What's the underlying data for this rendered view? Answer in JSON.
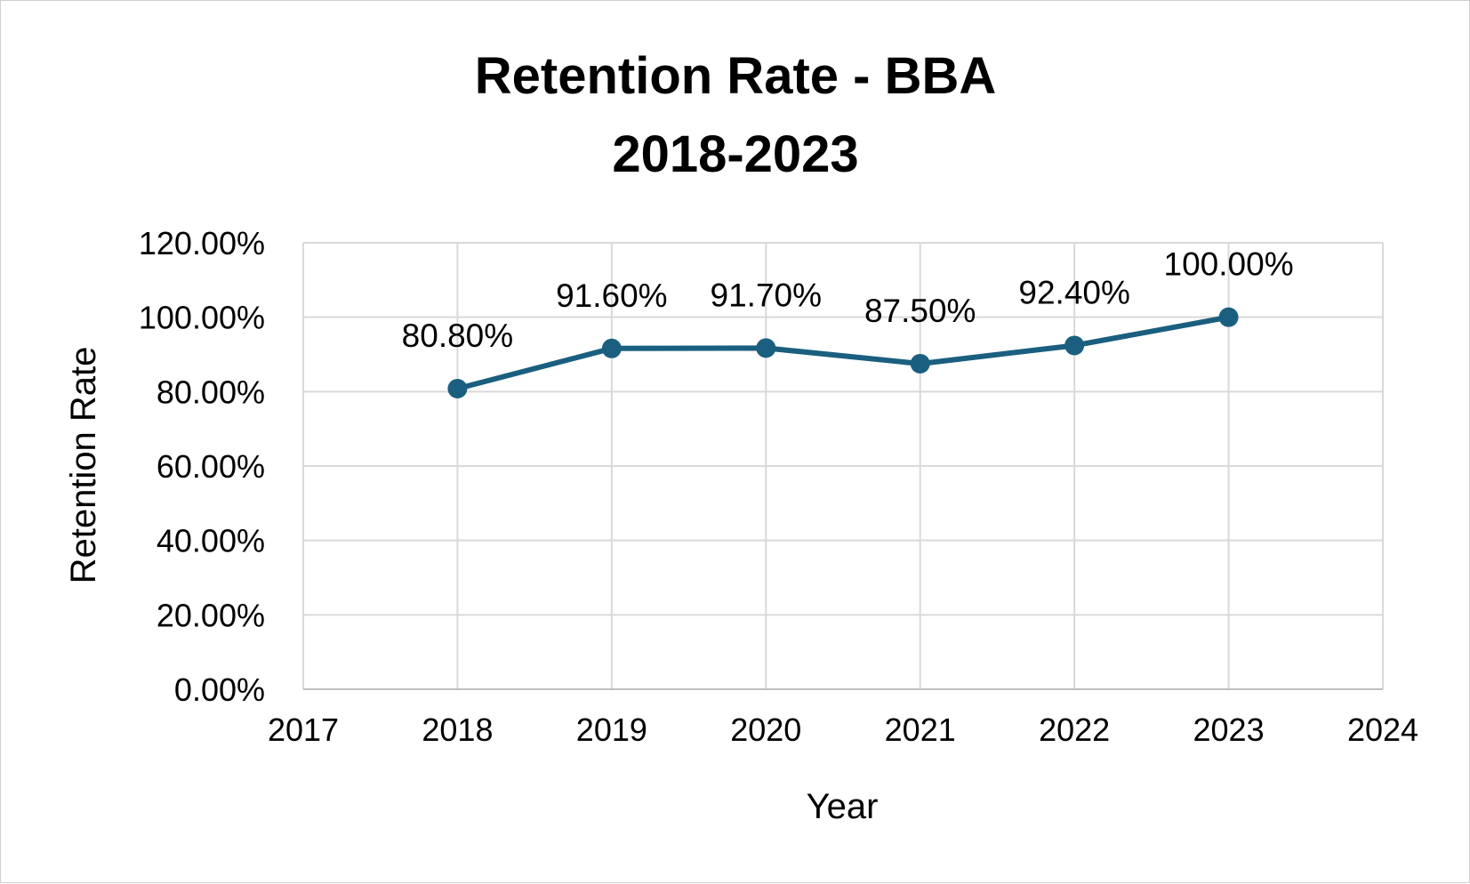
{
  "chart_data": {
    "type": "scatter",
    "title_lines": [
      "Retention Rate - BBA",
      "2018-2023"
    ],
    "xlabel": "Year",
    "ylabel": "Retention Rate",
    "xlim": [
      2017,
      2024
    ],
    "ylim": [
      0,
      120
    ],
    "x_ticks": [
      "2017",
      "2018",
      "2019",
      "2020",
      "2021",
      "2022",
      "2023",
      "2024"
    ],
    "y_ticks": [
      "0.00%",
      "20.00%",
      "40.00%",
      "60.00%",
      "80.00%",
      "100.00%",
      "120.00%"
    ],
    "grid": true,
    "legend": "none",
    "series": [
      {
        "x": [
          2018,
          2019,
          2020,
          2021,
          2022,
          2023
        ],
        "y": [
          80.8,
          91.6,
          91.7,
          87.5,
          92.4,
          100.0
        ],
        "labels": [
          "80.80%",
          "91.60%",
          "91.70%",
          "87.50%",
          "92.40%",
          "100.00%"
        ],
        "color": "#1a5f7f",
        "style": "lines-with-markers"
      }
    ]
  }
}
